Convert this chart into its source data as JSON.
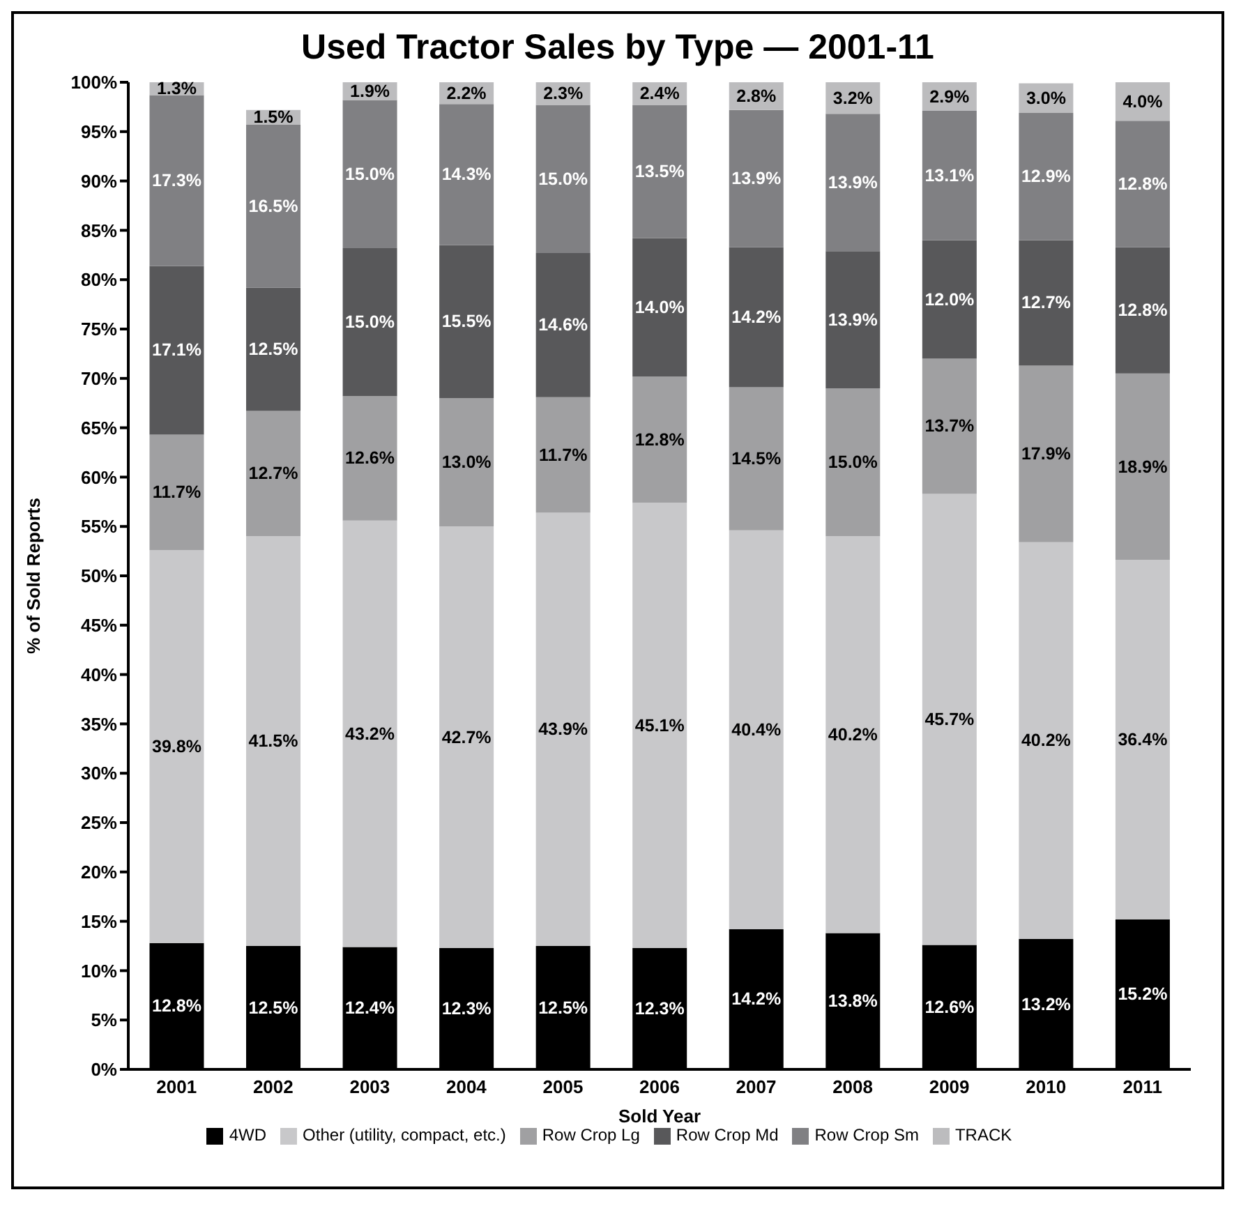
{
  "chart_data": {
    "type": "bar",
    "stacked": true,
    "title": "Used Tractor Sales by Type — 2001-11",
    "xlabel": "Sold Year",
    "ylabel": "% of Sold Reports",
    "categories": [
      "2001",
      "2002",
      "2003",
      "2004",
      "2005",
      "2006",
      "2007",
      "2008",
      "2009",
      "2010",
      "2011"
    ],
    "series": [
      {
        "name": "4WD",
        "color": "#000000",
        "values": [
          12.8,
          12.5,
          12.4,
          12.3,
          12.5,
          12.3,
          14.2,
          13.8,
          12.6,
          13.2,
          15.2
        ],
        "value_labels": [
          "12.8%",
          "12.5%",
          "12.4%",
          "12.3%",
          "12.5%",
          "12.3%",
          "14.2%",
          "13.8%",
          "12.6%",
          "13.2%",
          "15.2%"
        ]
      },
      {
        "name": "Other (utility, compact, etc.)",
        "color": "#c8c8ca",
        "values": [
          39.8,
          41.5,
          43.2,
          42.7,
          43.9,
          45.1,
          40.4,
          40.2,
          45.7,
          40.2,
          36.4
        ],
        "value_labels": [
          "39.8%",
          "41.5%",
          "43.2%",
          "42.7%",
          "43.9%",
          "45.1%",
          "40.4%",
          "40.2%",
          "45.7%",
          "40.2%",
          "36.4%"
        ]
      },
      {
        "name": "Row Crop Lg",
        "color": "#a0a0a2",
        "values": [
          11.7,
          12.7,
          12.6,
          13.0,
          11.7,
          12.8,
          14.5,
          15.0,
          13.7,
          17.9,
          18.9
        ],
        "value_labels": [
          "11.7%",
          "12.7%",
          "12.6%",
          "13.0%",
          "11.7%",
          "12.8%",
          "14.5%",
          "15.0%",
          "13.7%",
          "17.9%",
          "18.9%"
        ]
      },
      {
        "name": "Row Crop Md",
        "color": "#58585a",
        "values": [
          17.1,
          12.5,
          15.0,
          15.5,
          14.6,
          14.0,
          14.2,
          13.9,
          12.0,
          12.7,
          12.8
        ],
        "value_labels": [
          "17.1%",
          "12.5%",
          "15.0%",
          "15.5%",
          "14.6%",
          "14.0%",
          "14.2%",
          "13.9%",
          "12.0%",
          "12.7%",
          "12.8%"
        ]
      },
      {
        "name": "Row Crop Sm",
        "color": "#808083",
        "values": [
          17.3,
          16.5,
          15.0,
          14.3,
          15.0,
          13.5,
          13.9,
          13.9,
          13.1,
          12.9,
          12.8
        ],
        "value_labels": [
          "17.3%",
          "16.5%",
          "15.0%",
          "14.3%",
          "15.0%",
          "13.5%",
          "13.9%",
          "13.9%",
          "13.1%",
          "12.9%",
          "12.8%"
        ]
      },
      {
        "name": "TRACK",
        "color": "#bcbcbe",
        "values": [
          1.3,
          1.5,
          1.9,
          2.2,
          2.3,
          2.4,
          2.8,
          3.2,
          2.9,
          3.0,
          4.0
        ],
        "value_labels": [
          "1.3%",
          "1.5%",
          "1.9%",
          "2.2%",
          "2.3%",
          "2.4%",
          "2.8%",
          "3.2%",
          "2.9%",
          "3.0%",
          "4.0%"
        ]
      }
    ],
    "ylim": [
      0,
      100
    ],
    "yticks": [
      {
        "value": 0,
        "label": "0%"
      },
      {
        "value": 5,
        "label": "5%"
      },
      {
        "value": 10,
        "label": "10%"
      },
      {
        "value": 15,
        "label": "15%"
      },
      {
        "value": 20,
        "label": "20%"
      },
      {
        "value": 25,
        "label": "25%"
      },
      {
        "value": 30,
        "label": "30%"
      },
      {
        "value": 35,
        "label": "35%"
      },
      {
        "value": 40,
        "label": "40%"
      },
      {
        "value": 45,
        "label": "45%"
      },
      {
        "value": 50,
        "label": "50%"
      },
      {
        "value": 55,
        "label": "55%"
      },
      {
        "value": 60,
        "label": "60%"
      },
      {
        "value": 65,
        "label": "65%"
      },
      {
        "value": 70,
        "label": "70%"
      },
      {
        "value": 75,
        "label": "75%"
      },
      {
        "value": 80,
        "label": "80%"
      },
      {
        "value": 85,
        "label": "85%"
      },
      {
        "value": 90,
        "label": "90%"
      },
      {
        "value": 95,
        "label": "95%"
      },
      {
        "value": 100,
        "label": "100%"
      }
    ],
    "grid": false,
    "legend": "bottom"
  }
}
